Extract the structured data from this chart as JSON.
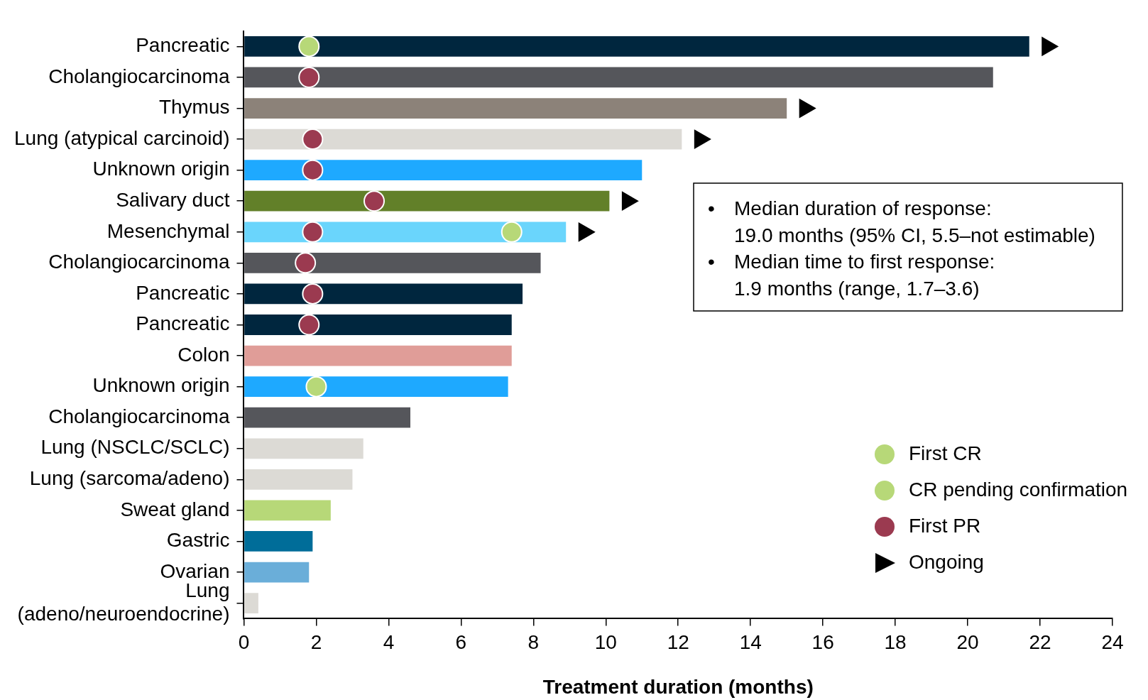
{
  "chart_data": {
    "type": "bar",
    "orientation": "horizontal",
    "xlabel": "Treatment duration (months)",
    "categories": [
      "Pancreatic",
      "Cholangiocarcinoma",
      "Thymus",
      "Lung (atypical carcinoid)",
      "Unknown origin",
      "Salivary duct",
      "Mesenchymal",
      "Cholangiocarcinoma",
      "Pancreatic",
      "Pancreatic",
      "Colon",
      "Unknown origin",
      "Cholangiocarcinoma",
      "Lung (NSCLC/SCLC)",
      "Lung (sarcoma/adeno)",
      "Sweat gland",
      "Gastric",
      "Ovarian",
      "Lung (adeno/neuroendocrine)"
    ],
    "series": [
      {
        "values": [
          21.7,
          20.7,
          15.0,
          12.1,
          11.0,
          10.1,
          8.9,
          8.2,
          7.7,
          7.4,
          7.4,
          7.3,
          4.6,
          3.3,
          3.0,
          2.4,
          1.9,
          1.8,
          0.4
        ],
        "colors": [
          "#00263e",
          "#55565b",
          "#8c8279",
          "#dcdad5",
          "#1ea9ff",
          "#628029",
          "#6ad5fc",
          "#55565b",
          "#00263e",
          "#00263e",
          "#e09d98",
          "#1ea9ff",
          "#55565b",
          "#dcdad5",
          "#dcdad5",
          "#b7d878",
          "#006d99",
          "#6aaed9",
          "#dcdad5"
        ]
      },
      {
        "type": "scatter",
        "name": "First CR",
        "color": "#b7d878",
        "marker": "circle",
        "values": [
          1.8,
          null,
          null,
          null,
          null,
          null,
          null,
          null,
          null,
          null,
          null,
          2.0,
          null,
          null,
          null,
          null,
          null,
          null,
          null
        ]
      },
      {
        "type": "scatter",
        "name": "CR pending confirmation",
        "color": "#b7d878",
        "marker": "circle",
        "values": [
          null,
          null,
          null,
          null,
          null,
          null,
          7.4,
          null,
          null,
          null,
          null,
          null,
          null,
          null,
          null,
          null,
          null,
          null,
          null
        ]
      },
      {
        "type": "scatter",
        "name": "First PR",
        "color": "#9b3a50",
        "marker": "circle",
        "values": [
          null,
          1.8,
          null,
          1.9,
          1.9,
          3.6,
          1.9,
          1.7,
          1.9,
          1.8,
          null,
          null,
          null,
          null,
          null,
          null,
          null,
          null,
          null
        ]
      },
      {
        "type": "scatter",
        "name": "Ongoing",
        "color": "#000000",
        "marker": "triangle",
        "values": [
          22.2,
          null,
          15.5,
          12.6,
          null,
          10.6,
          9.4,
          null,
          null,
          null,
          null,
          null,
          null,
          null,
          null,
          null,
          null,
          null,
          null
        ]
      }
    ],
    "xlim": [
      0,
      24
    ],
    "xticks": [
      0,
      2,
      4,
      6,
      8,
      10,
      12,
      14,
      16,
      18,
      20,
      22,
      24
    ],
    "grid": false,
    "legend": "bottom right",
    "annotations": [
      "• Median duration of response: 19.0 months (95% CI, 5.5–not estimable)",
      "• Median time to first response: 1.9 months (range, 1.7–3.6)"
    ]
  }
}
